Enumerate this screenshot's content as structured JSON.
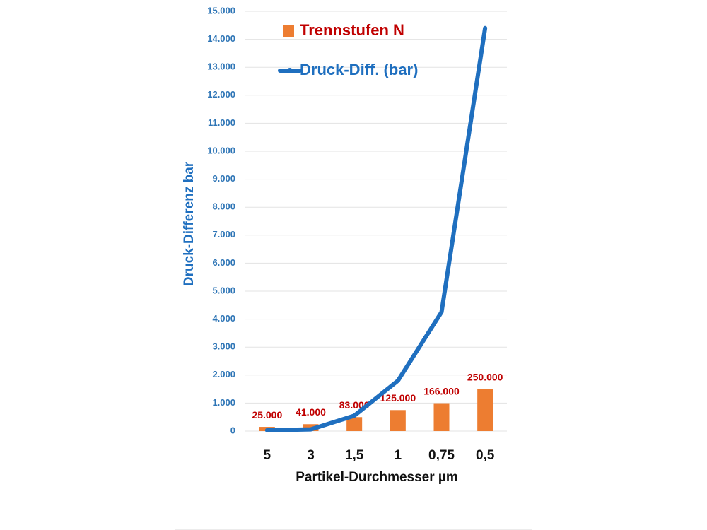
{
  "chart_data": {
    "type": "bar-line",
    "y_label": "Druck-Differenz bar",
    "x_label": "Partikel-Durchmesser µm",
    "categories": [
      "5",
      "3",
      "1,5",
      "1",
      "0,75",
      "0,5"
    ],
    "ylim": [
      0,
      15000
    ],
    "yticks": [
      0,
      {
        "value": 1000,
        "label": "1.000"
      },
      {
        "value": 2000,
        "label": "2.000"
      },
      {
        "value": 3000,
        "label": "3.000"
      },
      {
        "value": 4000,
        "label": "4.000"
      },
      {
        "value": 5000,
        "label": "5.000"
      },
      {
        "value": 6000,
        "label": "6.000"
      },
      {
        "value": 7000,
        "label": "7.000"
      },
      {
        "value": 8000,
        "label": "8.000"
      },
      {
        "value": 9000,
        "label": "9.000"
      },
      {
        "value": 10000,
        "label": "10.000"
      },
      {
        "value": 11000,
        "label": "11.000"
      },
      {
        "value": 12000,
        "label": "12.000"
      },
      {
        "value": 13000,
        "label": "13.000"
      },
      {
        "value": 14000,
        "label": "14.000"
      },
      {
        "value": 15000,
        "label": "15.000"
      }
    ],
    "y2lim": [
      0,
      2500000
    ],
    "grid": true,
    "series": [
      {
        "name": "Trennstufen N",
        "kind": "bar",
        "axis": "y2",
        "color": "#ed7d31",
        "values": [
          25000,
          41000,
          83000,
          125000,
          166000,
          250000
        ],
        "value_labels": [
          "25.000",
          "41.000",
          "83.000",
          "125.000",
          "166.000",
          "250.000"
        ]
      },
      {
        "name": "Druck-Diff. (bar)",
        "kind": "line",
        "color": "#1f6fbf",
        "values": [
          30,
          60,
          550,
          1800,
          4250,
          14400
        ]
      }
    ]
  }
}
